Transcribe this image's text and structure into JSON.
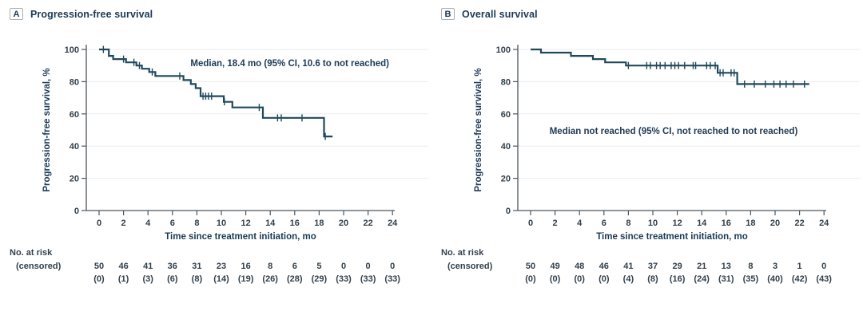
{
  "colors": {
    "curve": "#20495c",
    "text_dark": "#1c3a54",
    "text": "#323f4a",
    "grid": "#ebebeb",
    "axis": "#4d565e",
    "box_border": "#a9b0b6"
  },
  "chart_data": [
    {
      "type": "line",
      "subtype": "kaplan-meier-step",
      "panel_letter": "A",
      "title": "Progression-free survival",
      "ylabel": "Progression-free survival, %",
      "xlabel": "Time since treatment initiation, mo",
      "annotation": {
        "text": "Median, 18.4 mo (95% CI, 10.6 to not reached)",
        "x_mo": 15.6,
        "y_pct": 91.5
      },
      "xlim": [
        0,
        24
      ],
      "ylim": [
        0,
        100
      ],
      "xticks": [
        0,
        2,
        4,
        6,
        8,
        10,
        12,
        14,
        16,
        18,
        20,
        22,
        24
      ],
      "yticks": [
        0,
        20,
        40,
        60,
        80,
        100
      ],
      "grid": true,
      "legend": "none",
      "steps": [
        [
          0,
          100
        ],
        [
          0.8,
          96
        ],
        [
          1.15,
          94
        ],
        [
          2.2,
          92
        ],
        [
          3.05,
          90
        ],
        [
          3.5,
          88
        ],
        [
          4.1,
          86
        ],
        [
          4.6,
          83.5
        ],
        [
          6.9,
          81
        ],
        [
          7.5,
          78.5
        ],
        [
          7.9,
          76
        ],
        [
          8.3,
          71
        ],
        [
          10.2,
          67.5
        ],
        [
          10.9,
          64
        ],
        [
          13.4,
          57.5
        ],
        [
          18.4,
          46
        ]
      ],
      "end_time": 19.1,
      "censors": [
        [
          0.35,
          100
        ],
        [
          2.0,
          94
        ],
        [
          2.85,
          92
        ],
        [
          3.3,
          90
        ],
        [
          4.35,
          86
        ],
        [
          6.6,
          83.5
        ],
        [
          8.5,
          71
        ],
        [
          8.72,
          71
        ],
        [
          8.95,
          71
        ],
        [
          9.2,
          71
        ],
        [
          10.25,
          67.5
        ],
        [
          13.1,
          64
        ],
        [
          14.6,
          57.5
        ],
        [
          14.9,
          57.5
        ],
        [
          16.6,
          57.5
        ],
        [
          18.5,
          46
        ]
      ],
      "at_risk": {
        "row1_label": "No. at risk",
        "row2_label": "(censored)",
        "risk": [
          "50",
          "46",
          "41",
          "36",
          "31",
          "23",
          "16",
          "8",
          "6",
          "5",
          "0",
          "0",
          "0"
        ],
        "censored": [
          "(0)",
          "(1)",
          "(3)",
          "(6)",
          "(8)",
          "(14)",
          "(19)",
          "(26)",
          "(28)",
          "(29)",
          "(33)",
          "(33)",
          "(33)"
        ]
      }
    },
    {
      "type": "line",
      "subtype": "kaplan-meier-step",
      "panel_letter": "B",
      "title": "Overall survival",
      "ylabel": "Progression-free survival, %",
      "xlabel": "Time since treatment initiation, mo",
      "annotation": {
        "text": "Median not reached (95% CI, not reached to not reached)",
        "x_mo": 11.7,
        "y_pct": 49.5
      },
      "xlim": [
        0,
        24
      ],
      "ylim": [
        0,
        100
      ],
      "xticks": [
        0,
        2,
        4,
        6,
        8,
        10,
        12,
        14,
        16,
        18,
        20,
        22,
        24
      ],
      "yticks": [
        0,
        20,
        40,
        60,
        80,
        100
      ],
      "grid": true,
      "legend": "none",
      "steps": [
        [
          0,
          100
        ],
        [
          0.85,
          98
        ],
        [
          3.3,
          96
        ],
        [
          5.1,
          94
        ],
        [
          6.1,
          92
        ],
        [
          7.8,
          90
        ],
        [
          15.3,
          85.5
        ],
        [
          16.9,
          78.5
        ]
      ],
      "end_time": 22.8,
      "censors": [
        [
          8.0,
          90
        ],
        [
          9.5,
          90
        ],
        [
          9.8,
          90
        ],
        [
          10.3,
          90
        ],
        [
          10.6,
          90
        ],
        [
          11.0,
          90
        ],
        [
          11.5,
          90
        ],
        [
          11.8,
          90
        ],
        [
          12.1,
          90
        ],
        [
          12.6,
          90
        ],
        [
          13.3,
          90
        ],
        [
          13.5,
          90
        ],
        [
          14.4,
          90
        ],
        [
          14.7,
          90
        ],
        [
          15.1,
          90
        ],
        [
          15.5,
          85.5
        ],
        [
          15.75,
          85.5
        ],
        [
          16.4,
          85.5
        ],
        [
          16.65,
          85.5
        ],
        [
          17.5,
          78.5
        ],
        [
          18.3,
          78.5
        ],
        [
          19.2,
          78.5
        ],
        [
          19.9,
          78.5
        ],
        [
          20.4,
          78.5
        ],
        [
          20.9,
          78.5
        ],
        [
          21.5,
          78.5
        ],
        [
          22.4,
          78.5
        ]
      ],
      "at_risk": {
        "row1_label": "No. at risk",
        "row2_label": "(censored)",
        "risk": [
          "50",
          "49",
          "48",
          "46",
          "41",
          "37",
          "29",
          "21",
          "13",
          "8",
          "3",
          "1",
          "0"
        ],
        "censored": [
          "(0)",
          "(0)",
          "(0)",
          "(0)",
          "(4)",
          "(8)",
          "(16)",
          "(24)",
          "(31)",
          "(35)",
          "(40)",
          "(42)",
          "(43)"
        ]
      }
    }
  ]
}
